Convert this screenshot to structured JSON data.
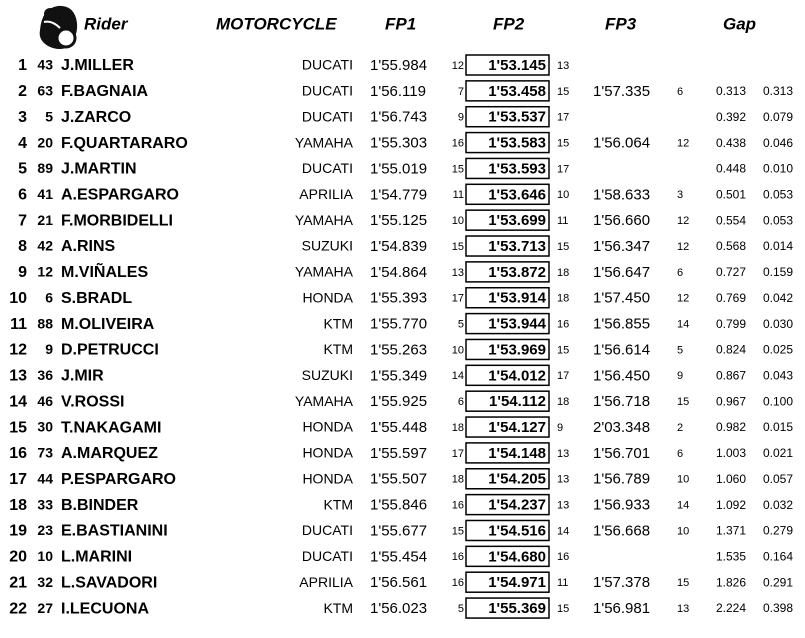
{
  "header": {
    "rider": "Rider",
    "motorcycle": "MOTORCYCLE",
    "fp1": "FP1",
    "fp2": "FP2",
    "fp3": "FP3",
    "gap": "Gap"
  },
  "table": {
    "rows": [
      [
        1,
        43,
        "J.MILLER",
        "DUCATI",
        "1'55.984",
        12,
        "1'53.145",
        13,
        null,
        null,
        null,
        null
      ],
      [
        2,
        63,
        "F.BAGNAIA",
        "DUCATI",
        "1'56.119",
        7,
        "1'53.458",
        15,
        "1'57.335",
        6,
        "0.313",
        "0.313"
      ],
      [
        3,
        5,
        "J.ZARCO",
        "DUCATI",
        "1'56.743",
        9,
        "1'53.537",
        17,
        null,
        null,
        "0.392",
        "0.079"
      ],
      [
        4,
        20,
        "F.QUARTARARO",
        "YAMAHA",
        "1'55.303",
        16,
        "1'53.583",
        15,
        "1'56.064",
        12,
        "0.438",
        "0.046"
      ],
      [
        5,
        89,
        "J.MARTIN",
        "DUCATI",
        "1'55.019",
        15,
        "1'53.593",
        17,
        null,
        null,
        "0.448",
        "0.010"
      ],
      [
        6,
        41,
        "A.ESPARGARO",
        "APRILIA",
        "1'54.779",
        11,
        "1'53.646",
        10,
        "1'58.633",
        3,
        "0.501",
        "0.053"
      ],
      [
        7,
        21,
        "F.MORBIDELLI",
        "YAMAHA",
        "1'55.125",
        10,
        "1'53.699",
        11,
        "1'56.660",
        12,
        "0.554",
        "0.053"
      ],
      [
        8,
        42,
        "A.RINS",
        "SUZUKI",
        "1'54.839",
        15,
        "1'53.713",
        15,
        "1'56.347",
        12,
        "0.568",
        "0.014"
      ],
      [
        9,
        12,
        "M.VIÑALES",
        "YAMAHA",
        "1'54.864",
        13,
        "1'53.872",
        18,
        "1'56.647",
        6,
        "0.727",
        "0.159"
      ],
      [
        10,
        6,
        "S.BRADL",
        "HONDA",
        "1'55.393",
        17,
        "1'53.914",
        18,
        "1'57.450",
        12,
        "0.769",
        "0.042"
      ],
      [
        11,
        88,
        "M.OLIVEIRA",
        "KTM",
        "1'55.770",
        5,
        "1'53.944",
        16,
        "1'56.855",
        14,
        "0.799",
        "0.030"
      ],
      [
        12,
        9,
        "D.PETRUCCI",
        "KTM",
        "1'55.263",
        10,
        "1'53.969",
        15,
        "1'56.614",
        5,
        "0.824",
        "0.025"
      ],
      [
        13,
        36,
        "J.MIR",
        "SUZUKI",
        "1'55.349",
        14,
        "1'54.012",
        17,
        "1'56.450",
        9,
        "0.867",
        "0.043"
      ],
      [
        14,
        46,
        "V.ROSSI",
        "YAMAHA",
        "1'55.925",
        6,
        "1'54.112",
        18,
        "1'56.718",
        15,
        "0.967",
        "0.100"
      ],
      [
        15,
        30,
        "T.NAKAGAMI",
        "HONDA",
        "1'55.448",
        18,
        "1'54.127",
        9,
        "2'03.348",
        2,
        "0.982",
        "0.015"
      ],
      [
        16,
        73,
        "A.MARQUEZ",
        "HONDA",
        "1'55.597",
        17,
        "1'54.148",
        13,
        "1'56.701",
        6,
        "1.003",
        "0.021"
      ],
      [
        17,
        44,
        "P.ESPARGARO",
        "HONDA",
        "1'55.507",
        18,
        "1'54.205",
        13,
        "1'56.789",
        10,
        "1.060",
        "0.057"
      ],
      [
        18,
        33,
        "B.BINDER",
        "KTM",
        "1'55.846",
        16,
        "1'54.237",
        13,
        "1'56.933",
        14,
        "1.092",
        "0.032"
      ],
      [
        19,
        23,
        "E.BASTIANINI",
        "DUCATI",
        "1'55.677",
        15,
        "1'54.516",
        14,
        "1'56.668",
        10,
        "1.371",
        "0.279"
      ],
      [
        20,
        10,
        "L.MARINI",
        "DUCATI",
        "1'55.454",
        16,
        "1'54.680",
        16,
        null,
        null,
        "1.535",
        "0.164"
      ],
      [
        21,
        32,
        "L.SAVADORI",
        "APRILIA",
        "1'56.561",
        16,
        "1'54.971",
        11,
        "1'57.378",
        15,
        "1.826",
        "0.291"
      ],
      [
        22,
        27,
        "I.LECUONA",
        "KTM",
        "1'56.023",
        5,
        "1'55.369",
        15,
        "1'56.981",
        13,
        "2.224",
        "0.398"
      ]
    ]
  }
}
